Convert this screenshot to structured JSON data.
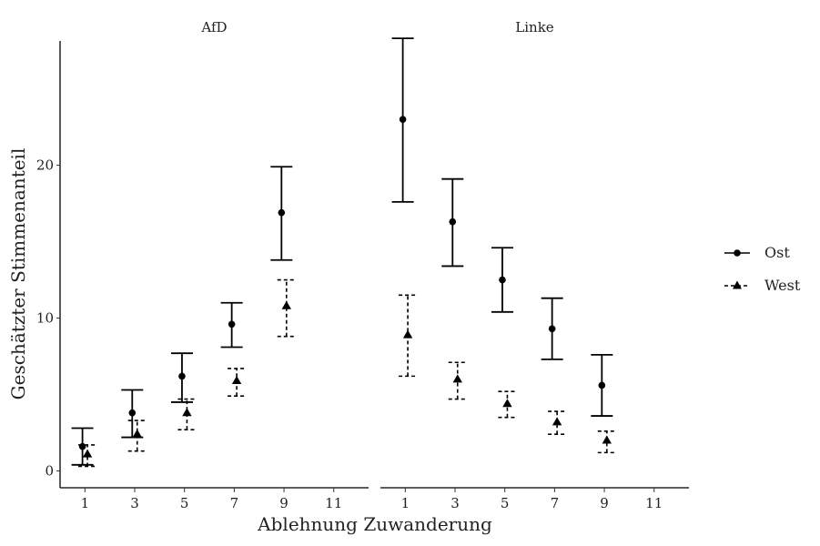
{
  "chart_data": {
    "type": "errorbar",
    "ylabel": "Geschätzter Stimmenanteil",
    "xlabel": "Ablehnung Zuwanderung",
    "x_ticks": [
      1,
      3,
      5,
      7,
      9,
      11
    ],
    "y_ticks": [
      0,
      10,
      20
    ],
    "xlim": [
      0,
      12.4
    ],
    "ylim": [
      -1.1,
      29.5
    ],
    "legend_position": "right",
    "legend": [
      {
        "name": "Ost",
        "marker": "circle",
        "linestyle": "solid"
      },
      {
        "name": "West",
        "marker": "triangle",
        "linestyle": "dashed"
      }
    ],
    "panels": [
      {
        "title": "AfD",
        "series": [
          {
            "name": "Ost",
            "points": [
              {
                "x": 0.9,
                "y": 1.6,
                "lo": 0.4,
                "hi": 2.8
              },
              {
                "x": 2.9,
                "y": 3.8,
                "lo": 2.2,
                "hi": 5.3
              },
              {
                "x": 4.9,
                "y": 6.2,
                "lo": 4.5,
                "hi": 7.7
              },
              {
                "x": 6.9,
                "y": 9.6,
                "lo": 8.1,
                "hi": 11.0
              },
              {
                "x": 8.9,
                "y": 16.9,
                "lo": 13.8,
                "hi": 19.9
              }
            ]
          },
          {
            "name": "West",
            "points": [
              {
                "x": 1.1,
                "y": 1.1,
                "lo": 0.3,
                "hi": 1.7
              },
              {
                "x": 3.1,
                "y": 2.4,
                "lo": 1.3,
                "hi": 3.3
              },
              {
                "x": 5.1,
                "y": 3.8,
                "lo": 2.7,
                "hi": 4.7
              },
              {
                "x": 7.1,
                "y": 5.9,
                "lo": 4.9,
                "hi": 6.7
              },
              {
                "x": 9.1,
                "y": 10.8,
                "lo": 8.8,
                "hi": 12.5
              }
            ]
          }
        ]
      },
      {
        "title": "Linke",
        "series": [
          {
            "name": "Ost",
            "points": [
              {
                "x": 0.9,
                "y": 23.0,
                "lo": 17.6,
                "hi": 28.3
              },
              {
                "x": 2.9,
                "y": 16.3,
                "lo": 13.4,
                "hi": 19.1
              },
              {
                "x": 4.9,
                "y": 12.5,
                "lo": 10.4,
                "hi": 14.6
              },
              {
                "x": 6.9,
                "y": 9.3,
                "lo": 7.3,
                "hi": 11.3
              },
              {
                "x": 8.9,
                "y": 5.6,
                "lo": 3.6,
                "hi": 7.6
              }
            ]
          },
          {
            "name": "West",
            "points": [
              {
                "x": 1.1,
                "y": 8.9,
                "lo": 6.2,
                "hi": 11.5
              },
              {
                "x": 3.1,
                "y": 6.0,
                "lo": 4.7,
                "hi": 7.1
              },
              {
                "x": 5.1,
                "y": 4.4,
                "lo": 3.5,
                "hi": 5.2
              },
              {
                "x": 7.1,
                "y": 3.2,
                "lo": 2.4,
                "hi": 3.9
              },
              {
                "x": 9.1,
                "y": 2.0,
                "lo": 1.2,
                "hi": 2.6
              }
            ]
          }
        ]
      }
    ]
  }
}
